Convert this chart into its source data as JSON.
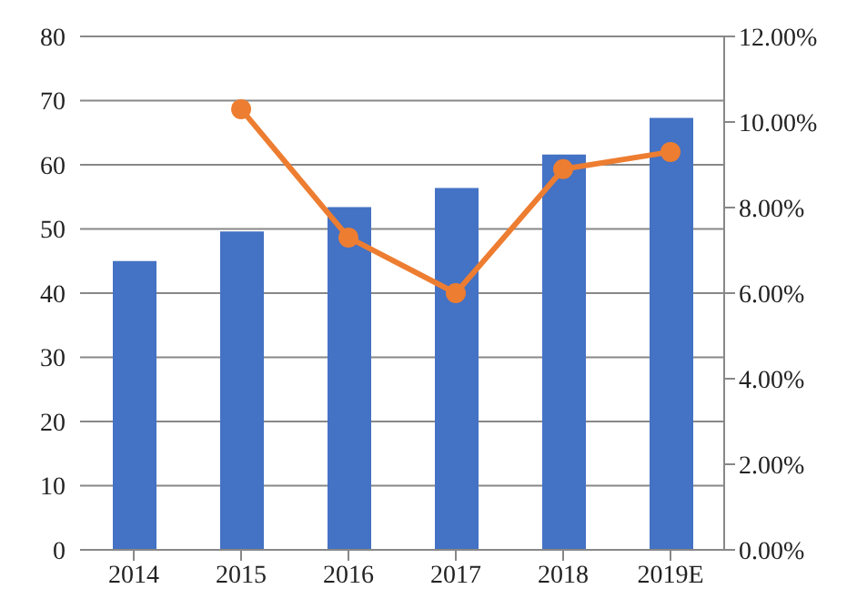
{
  "chart_data": {
    "type": "bar",
    "categories": [
      "2014",
      "2015",
      "2016",
      "2017",
      "2018",
      "2019E"
    ],
    "series": [
      {
        "color": "#4472c4",
        "values": [
          45,
          49.6,
          53.4,
          56.4,
          61.6,
          67.3
        ]
      },
      {
        "type": "line",
        "axis": "y2",
        "color": "#ed7d31",
        "values": [
          null,
          10.3,
          7.3,
          6.0,
          8.9,
          9.3
        ]
      }
    ],
    "ylim": [
      0,
      80
    ],
    "yticks": [
      0,
      10,
      20,
      30,
      40,
      50,
      60,
      70,
      80
    ],
    "y2lim": [
      0,
      12
    ],
    "y2ticks": [
      {
        "value": 0,
        "label": "0.00%"
      },
      {
        "value": 2,
        "label": "2.00%"
      },
      {
        "value": 4,
        "label": "4.00%"
      },
      {
        "value": 6,
        "label": "6.00%"
      },
      {
        "value": 8,
        "label": "8.00%"
      },
      {
        "value": 10,
        "label": "10.00%"
      },
      {
        "value": 12,
        "label": "12.00%"
      }
    ],
    "grid": "y",
    "marker": "circle",
    "line_style": "solid",
    "legend": false
  }
}
